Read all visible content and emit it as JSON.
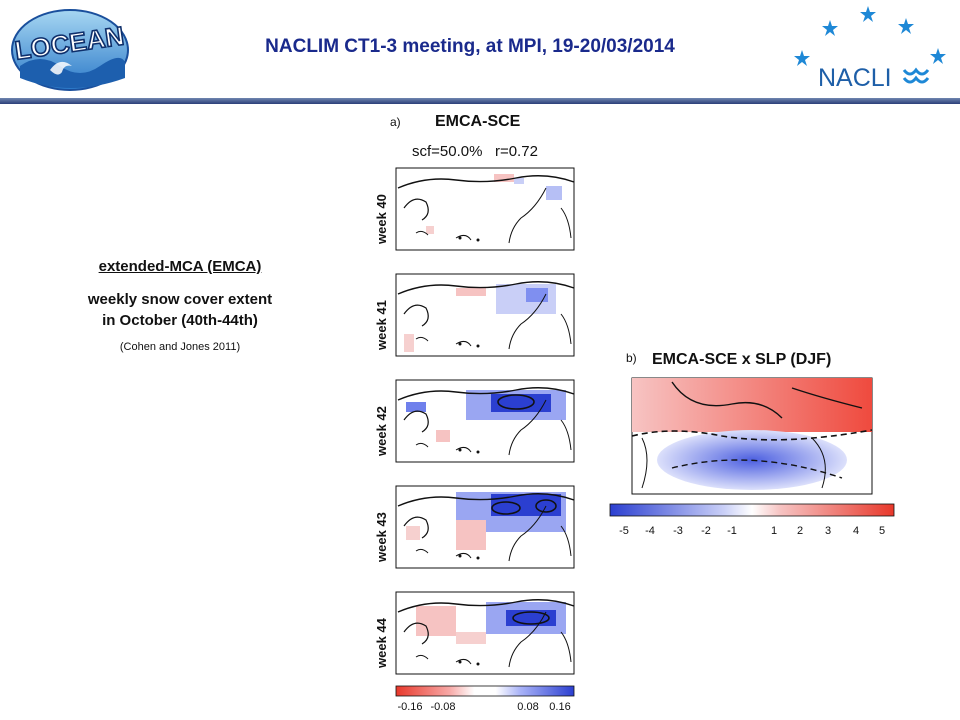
{
  "header": {
    "title": "NACLIM CT1-3 meeting, at MPI, 19-20/03/2014",
    "logo_left_text": "LOCEAN",
    "logo_right_text": "NACLI"
  },
  "left": {
    "title": "extended-MCA (EMCA)",
    "subtitle_line1": "weekly snow cover extent",
    "subtitle_line2": "in October (40th-44th)",
    "citation": "(Cohen and Jones 2011)"
  },
  "panel_a": {
    "label": "a)",
    "title": "EMCA-SCE",
    "stats": "scf=50.0%   r=0.72",
    "weeks": [
      "week 40",
      "week 41",
      "week 42",
      "week 43",
      "week 44"
    ],
    "colorbar_ticks": [
      "-0.16",
      "-0.08",
      "0.08",
      "0.16"
    ]
  },
  "panel_b": {
    "label": "b)",
    "title": "EMCA-SCE x SLP (DJF)",
    "colorbar_ticks": [
      "-5",
      "-4",
      "-3",
      "-2",
      "-1",
      "1",
      "2",
      "3",
      "4",
      "5"
    ]
  },
  "colors": {
    "title_blue": "#1a2a8c",
    "red": "#e8382b",
    "blue": "#2b3fd0",
    "star_blue": "#1e88d6"
  }
}
